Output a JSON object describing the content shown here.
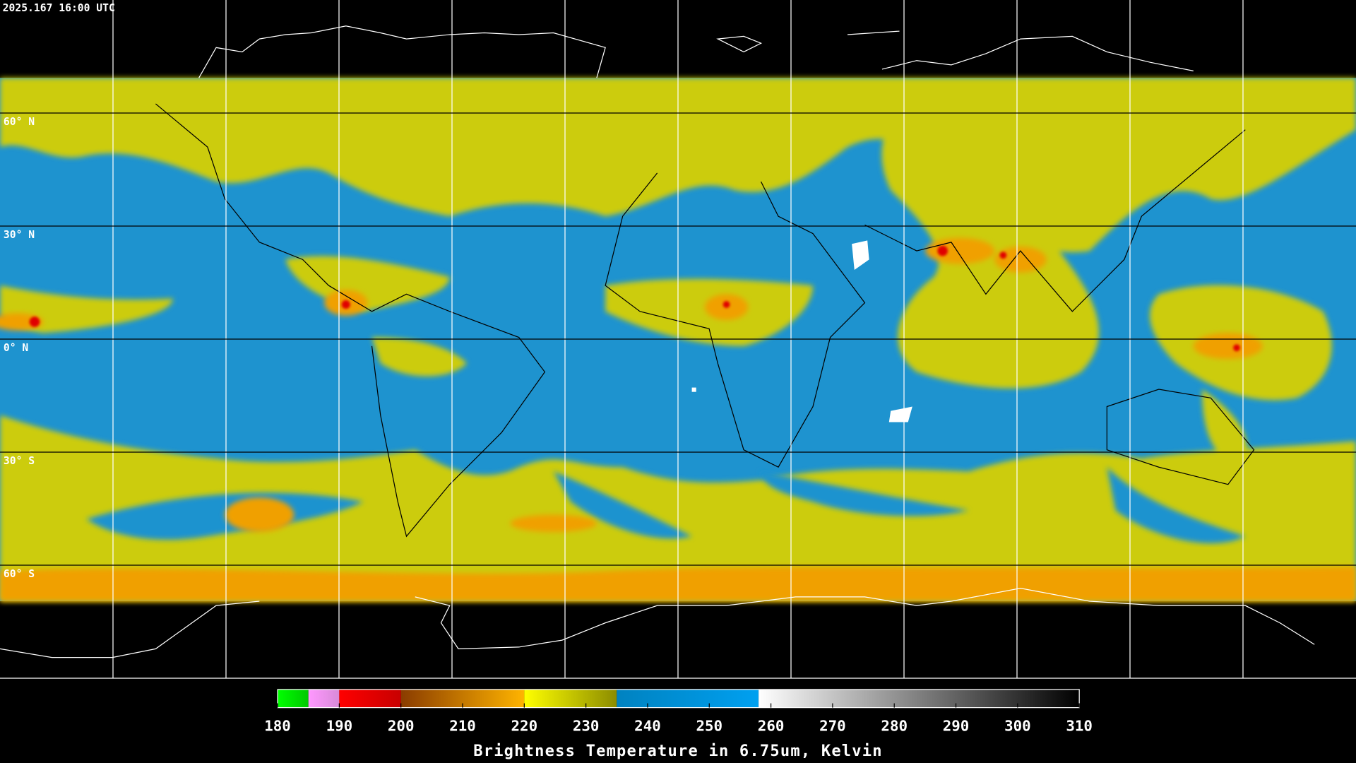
{
  "header": {
    "timestamp": "2025.167 16:00 UTC"
  },
  "map": {
    "lat_labels": [
      "60° N",
      "30° N",
      "0° N",
      "30° S",
      "60° S"
    ]
  },
  "colorbar": {
    "min": 180,
    "max": 310,
    "ticks": [
      180,
      190,
      200,
      210,
      220,
      230,
      240,
      250,
      260,
      270,
      280,
      290,
      300,
      310
    ],
    "title": "Brightness Temperature in 6.75um, Kelvin",
    "segments": [
      {
        "from": 180,
        "to": 185,
        "colors": [
          "#00ff00",
          "#00c800"
        ]
      },
      {
        "from": 185,
        "to": 190,
        "colors": [
          "#ff98ff",
          "#d88ad8"
        ]
      },
      {
        "from": 190,
        "to": 200,
        "colors": [
          "#ff0000",
          "#c80000"
        ]
      },
      {
        "from": 200,
        "to": 220,
        "colors": [
          "#8a3c00",
          "#ffb400"
        ]
      },
      {
        "from": 220,
        "to": 235,
        "colors": [
          "#ffff00",
          "#8c8c00"
        ]
      },
      {
        "from": 235,
        "to": 258,
        "colors": [
          "#0082c0",
          "#00a0f0"
        ]
      },
      {
        "from": 258,
        "to": 310,
        "colors": [
          "#ffffff",
          "#000000"
        ]
      }
    ]
  }
}
